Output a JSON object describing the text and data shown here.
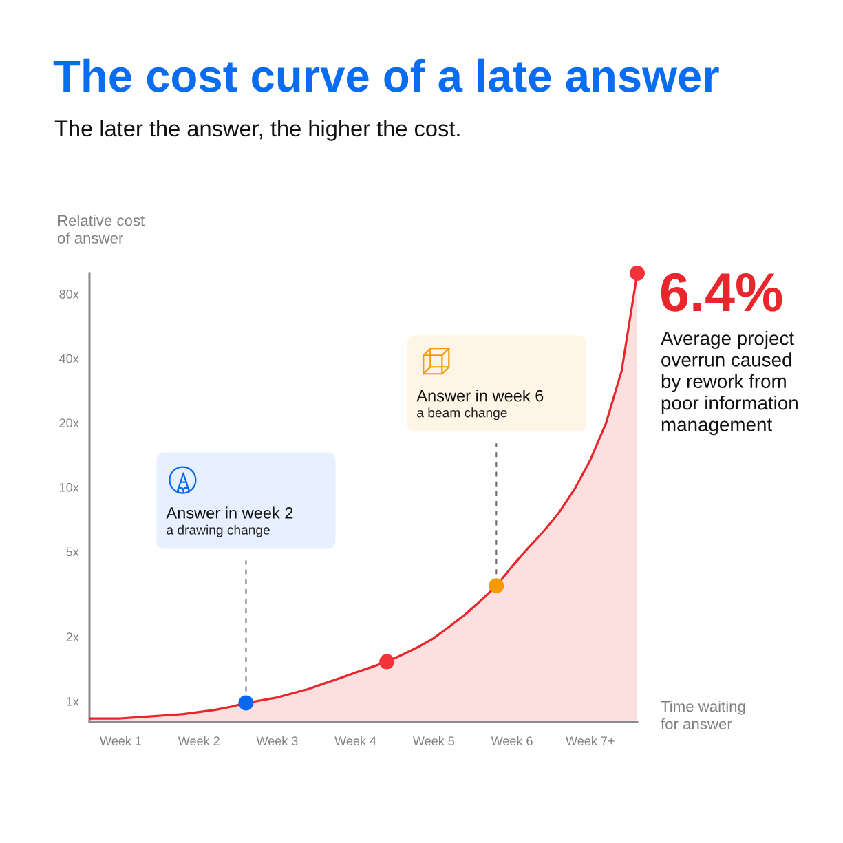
{
  "chart_data": {
    "type": "area",
    "title": "The cost curve of a late answer",
    "subtitle": "The later the answer, the higher the cost.",
    "xlabel": "Time waiting\nfor answer",
    "ylabel": "Relative cost\nof answer",
    "categories": [
      null,
      null,
      "Week 1",
      null,
      null,
      null,
      null,
      "Week 2",
      null,
      null,
      null,
      null,
      "Week 3",
      null,
      null,
      null,
      null,
      "Week 4",
      null,
      null,
      null,
      null,
      "Week 5",
      null,
      null,
      null,
      null,
      "Week 6",
      null,
      null,
      null,
      null,
      "Week 7+",
      null,
      null,
      null
    ],
    "ylim": [
      0.8,
      100
    ],
    "yticks": [
      {
        "value": 1,
        "label": "1x"
      },
      {
        "value": 2,
        "label": "2x"
      },
      {
        "value": 5,
        "label": "5x"
      },
      {
        "value": 10,
        "label": "10x"
      },
      {
        "value": 20,
        "label": "20x"
      },
      {
        "value": 40,
        "label": "40x"
      },
      {
        "value": 80,
        "label": "80x"
      }
    ],
    "log": "y",
    "series": [
      {
        "color": "#e8262b",
        "values": [
          0.83,
          0.83,
          0.83,
          0.84,
          0.85,
          0.86,
          0.87,
          0.89,
          0.91,
          0.94,
          0.98,
          1.01,
          1.04,
          1.09,
          1.14,
          1.21,
          1.28,
          1.36,
          1.44,
          1.53,
          1.65,
          1.79,
          1.97,
          2.23,
          2.54,
          2.95,
          3.46,
          4.26,
          5.17,
          6.2,
          7.6,
          9.8,
          13.4,
          19.9,
          34.9,
          100
        ]
      },
      {
        "type": "scatter",
        "marker": "circle",
        "color": "#0868f2",
        "values": [
          null,
          null,
          null,
          null,
          null,
          null,
          null,
          null,
          null,
          null,
          0.98,
          null,
          null,
          null,
          null,
          null,
          null,
          null,
          null,
          null,
          null,
          null,
          null,
          null,
          null,
          null,
          null,
          null,
          null,
          null,
          null,
          null,
          null,
          null,
          null,
          null
        ]
      },
      {
        "type": "scatter",
        "marker": "circle",
        "color": "#f4323a",
        "values": [
          null,
          null,
          null,
          null,
          null,
          null,
          null,
          null,
          null,
          null,
          null,
          null,
          null,
          null,
          null,
          null,
          null,
          null,
          null,
          1.53,
          null,
          null,
          null,
          null,
          null,
          null,
          null,
          null,
          null,
          null,
          null,
          null,
          null,
          null,
          null,
          100
        ]
      },
      {
        "type": "scatter",
        "marker": "circle",
        "color": "#f59b00",
        "values": [
          null,
          null,
          null,
          null,
          null,
          null,
          null,
          null,
          null,
          null,
          null,
          null,
          null,
          null,
          null,
          null,
          null,
          null,
          null,
          null,
          null,
          null,
          null,
          null,
          null,
          null,
          3.46,
          null,
          null,
          null,
          null,
          null,
          null,
          null,
          null,
          null
        ]
      }
    ],
    "annotations": [
      "Answer in week 2\na drawing change",
      "Answer in week 6\na beam change",
      "6.4%",
      "Average project\noverrun caused\nby rework from\npoor information\nmanagement"
    ]
  }
}
